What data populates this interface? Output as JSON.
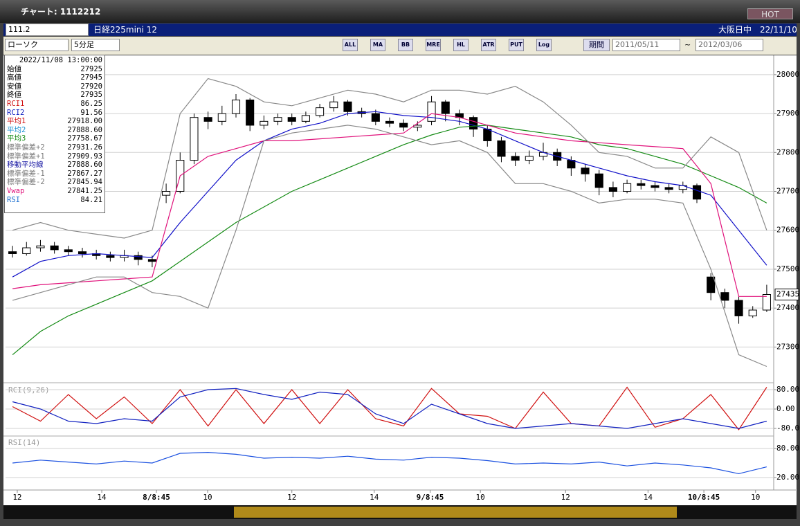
{
  "window": {
    "title": "チャート: 1112212",
    "hot": "HOT"
  },
  "toolbar": {
    "code": "111.2",
    "name": "日経225mini 12",
    "market": "大阪日中",
    "date": "22/11/10",
    "chart_type": "ローソク",
    "interval": "5分足",
    "buttons": [
      "ALL",
      "MA",
      "BB",
      "MRE",
      "HL",
      "ATR",
      "PUT",
      "Log"
    ],
    "period": "期間",
    "start": "2011/05/11",
    "tilde": "~",
    "end": "2012/03/06"
  },
  "info": {
    "time": "2022/11/08 13:00:00",
    "rows": [
      [
        "始値",
        "27925"
      ],
      [
        "高値",
        "27945"
      ],
      [
        "安値",
        "27920"
      ],
      [
        "終値",
        "27935"
      ],
      [
        "RCI1",
        "86.25"
      ],
      [
        "RCI2",
        "91.56"
      ],
      [
        "平均1",
        "27918.00"
      ],
      [
        "平均2",
        "27888.60"
      ],
      [
        "平均3",
        "27758.67"
      ],
      [
        "標準偏差+2",
        "27931.26"
      ],
      [
        "標準偏差+1",
        "27909.93"
      ],
      [
        "移動平均線",
        "27888.60"
      ],
      [
        "標準偏差-1",
        "27867.27"
      ],
      [
        "標準偏差-2",
        "27845.94"
      ],
      [
        "Vwap",
        "27841.25"
      ],
      [
        "RSI",
        "84.21"
      ]
    ],
    "colors": [
      "#000000",
      "#000000",
      "#000000",
      "#000000",
      "#d01010",
      "#1020c0",
      "#d01010",
      "#1a8fd0",
      "#138a13",
      "#777777",
      "#777777",
      "#1010a0",
      "#777777",
      "#777777",
      "#e0107a",
      "#1a6fd0"
    ]
  },
  "chart_data": [
    {
      "type": "candlestick",
      "up_color": "#ffffff",
      "down_color": "#000000",
      "edge_color": "#000000",
      "grid": true,
      "xlim": [
        -0.5,
        54.5
      ],
      "ylim": [
        27210,
        28046
      ],
      "yticks": [
        27300,
        27400,
        27500,
        27600,
        27700,
        27800,
        27900,
        28000
      ],
      "x": [
        0,
        1,
        2,
        3,
        4,
        5,
        6,
        7,
        8,
        9,
        10,
        11,
        12,
        13,
        14,
        15,
        16,
        17,
        18,
        19,
        20,
        21,
        22,
        23,
        24,
        25,
        26,
        27,
        28,
        29,
        30,
        31,
        32,
        33,
        34,
        35,
        36,
        37,
        38,
        39,
        40,
        41,
        42,
        43,
        44,
        45,
        46,
        47,
        48,
        49,
        50,
        51,
        52,
        53,
        54
      ],
      "open": [
        27545,
        27540,
        27555,
        27560,
        27550,
        27545,
        27540,
        27535,
        27530,
        27535,
        27525,
        27690,
        27700,
        27780,
        27890,
        27880,
        27900,
        27935,
        27870,
        27880,
        27890,
        27880,
        27895,
        27915,
        27930,
        27905,
        27900,
        27880,
        27875,
        27865,
        27880,
        27930,
        27900,
        27890,
        27860,
        27830,
        27790,
        27780,
        27790,
        27800,
        27780,
        27760,
        27745,
        27710,
        27700,
        27720,
        27715,
        27710,
        27705,
        27715,
        27480,
        27440,
        27420,
        27380,
        27395
      ],
      "high": [
        27560,
        27570,
        27575,
        27570,
        27560,
        27555,
        27550,
        27545,
        27550,
        27545,
        27535,
        27720,
        27800,
        27900,
        27905,
        27920,
        27950,
        27940,
        27895,
        27900,
        27900,
        27905,
        27925,
        27945,
        27935,
        27915,
        27910,
        27890,
        27885,
        27880,
        27945,
        27935,
        27910,
        27895,
        27870,
        27840,
        27800,
        27805,
        27825,
        27810,
        27790,
        27770,
        27755,
        27725,
        27730,
        27730,
        27725,
        27720,
        27725,
        27720,
        27490,
        27450,
        27430,
        27405,
        27460
      ],
      "low": [
        27530,
        27535,
        27545,
        27540,
        27535,
        27530,
        27525,
        27520,
        27520,
        27510,
        27505,
        27670,
        27695,
        27770,
        27860,
        27870,
        27890,
        27855,
        27860,
        27870,
        27870,
        27875,
        27890,
        27905,
        27895,
        27890,
        27870,
        27865,
        27855,
        27855,
        27870,
        27880,
        27870,
        27840,
        27815,
        27775,
        27765,
        27770,
        27780,
        27765,
        27740,
        27725,
        27690,
        27685,
        27695,
        27705,
        27700,
        27695,
        27695,
        27670,
        27420,
        27400,
        27360,
        27375,
        27390
      ],
      "close": [
        27540,
        27555,
        27560,
        27550,
        27545,
        27540,
        27535,
        27530,
        27535,
        27525,
        27520,
        27700,
        27780,
        27890,
        27880,
        27900,
        27935,
        27870,
        27880,
        27890,
        27880,
        27895,
        27915,
        27930,
        27905,
        27900,
        27880,
        27875,
        27865,
        27870,
        27930,
        27900,
        27890,
        27860,
        27830,
        27790,
        27780,
        27790,
        27800,
        27780,
        27760,
        27745,
        27710,
        27700,
        27720,
        27715,
        27710,
        27705,
        27715,
        27680,
        27440,
        27420,
        27380,
        27395,
        27435
      ]
    },
    {
      "type": "line",
      "xlim": [
        -0.5,
        54.5
      ],
      "ylim": [
        27210,
        28046
      ],
      "x": [
        0,
        2,
        4,
        6,
        8,
        10,
        12,
        14,
        16,
        18,
        20,
        22,
        24,
        26,
        28,
        30,
        32,
        34,
        36,
        38,
        40,
        42,
        44,
        46,
        48,
        50,
        52,
        54
      ],
      "series": [
        {
          "name": "移動平均線",
          "color": "#1010c8",
          "values": [
            27480,
            27520,
            27535,
            27540,
            27535,
            27530,
            27620,
            27700,
            27780,
            27830,
            27860,
            27875,
            27900,
            27905,
            27895,
            27890,
            27880,
            27860,
            27830,
            27800,
            27780,
            27760,
            27740,
            27725,
            27715,
            27690,
            27600,
            27510
          ]
        },
        {
          "name": "平均3",
          "color": "#138a13",
          "values": [
            27280,
            27340,
            27380,
            27410,
            27440,
            27470,
            27520,
            27570,
            27620,
            27660,
            27700,
            27730,
            27760,
            27790,
            27820,
            27845,
            27865,
            27870,
            27860,
            27850,
            27840,
            27820,
            27810,
            27790,
            27770,
            27740,
            27710,
            27670
          ]
        },
        {
          "name": "Vwap",
          "color": "#e0107a",
          "values": [
            27450,
            27460,
            27465,
            27470,
            27475,
            27480,
            27740,
            27790,
            27810,
            27830,
            27830,
            27835,
            27840,
            27845,
            27850,
            27900,
            27890,
            27870,
            27850,
            27840,
            27830,
            27825,
            27820,
            27815,
            27810,
            27720,
            27430,
            27430
          ]
        },
        {
          "name": "標準偏差+2",
          "color": "#888888",
          "values": [
            27600,
            27620,
            27600,
            27590,
            27580,
            27600,
            27900,
            27990,
            27970,
            27930,
            27920,
            27940,
            27960,
            27950,
            27930,
            27960,
            27960,
            27950,
            27970,
            27930,
            27870,
            27800,
            27790,
            27760,
            27760,
            27840,
            27800,
            27600
          ]
        },
        {
          "name": "標準偏差-2",
          "color": "#888888",
          "values": [
            27420,
            27440,
            27460,
            27480,
            27480,
            27440,
            27430,
            27400,
            27600,
            27830,
            27850,
            27860,
            27870,
            27860,
            27840,
            27820,
            27830,
            27800,
            27720,
            27720,
            27700,
            27670,
            27680,
            27680,
            27670,
            27500,
            27280,
            27250
          ]
        }
      ]
    },
    {
      "type": "line",
      "title": "RCI(9,26)",
      "xlim": [
        -0.5,
        54.5
      ],
      "ylim": [
        -100,
        100
      ],
      "yticks": [
        {
          "value": 80,
          "label": "80.00"
        },
        {
          "value": 0,
          "label": "0.00"
        },
        {
          "value": -80,
          "label": "-80.00"
        }
      ],
      "x": [
        0,
        2,
        4,
        6,
        8,
        10,
        12,
        14,
        16,
        18,
        20,
        22,
        24,
        26,
        28,
        30,
        32,
        34,
        36,
        38,
        40,
        42,
        44,
        46,
        48,
        50,
        52,
        54
      ],
      "series": [
        {
          "name": "RCI1",
          "color": "#d01010",
          "values": [
            10,
            -50,
            60,
            -40,
            50,
            -60,
            80,
            -70,
            80,
            -60,
            80,
            -60,
            80,
            -40,
            -70,
            85,
            -20,
            -30,
            -80,
            70,
            -60,
            -70,
            90,
            -75,
            -40,
            60,
            -85,
            90
          ]
        },
        {
          "name": "RCI2",
          "color": "#1020c0",
          "values": [
            30,
            0,
            -50,
            -60,
            -40,
            -50,
            50,
            80,
            85,
            60,
            40,
            70,
            60,
            -20,
            -60,
            20,
            -20,
            -60,
            -80,
            -70,
            -60,
            -70,
            -80,
            -60,
            -40,
            -60,
            -80,
            -50
          ]
        }
      ]
    },
    {
      "type": "line",
      "title": "RSI(14)",
      "xlim": [
        -0.5,
        54.5
      ],
      "ylim": [
        0,
        100
      ],
      "yticks": [
        {
          "value": 80,
          "label": "80.00"
        },
        {
          "value": 20,
          "label": "20.00"
        }
      ],
      "xticks": [
        {
          "value": 0.34,
          "label": "12"
        },
        {
          "value": 6.39,
          "label": "14"
        },
        {
          "value": 10.3,
          "label": "8/8:45"
        },
        {
          "value": 13.97,
          "label": "10"
        },
        {
          "value": 20,
          "label": "12"
        },
        {
          "value": 25.9,
          "label": "14"
        },
        {
          "value": 29.9,
          "label": "9/8:45"
        },
        {
          "value": 33.5,
          "label": "10"
        },
        {
          "value": 39.6,
          "label": "12"
        },
        {
          "value": 45.5,
          "label": "14"
        },
        {
          "value": 49.5,
          "label": "10/8:45"
        },
        {
          "value": 53.2,
          "label": "10"
        }
      ],
      "x": [
        0,
        2,
        4,
        6,
        8,
        10,
        12,
        14,
        16,
        18,
        20,
        22,
        24,
        26,
        28,
        30,
        32,
        34,
        36,
        38,
        40,
        42,
        44,
        46,
        48,
        50,
        52,
        54
      ],
      "series": [
        {
          "name": "RSI",
          "color": "#1a50e0",
          "values": [
            50,
            56,
            52,
            48,
            54,
            50,
            70,
            72,
            68,
            60,
            62,
            60,
            64,
            58,
            56,
            62,
            60,
            55,
            48,
            50,
            48,
            52,
            44,
            50,
            46,
            40,
            28,
            42
          ]
        }
      ]
    }
  ]
}
